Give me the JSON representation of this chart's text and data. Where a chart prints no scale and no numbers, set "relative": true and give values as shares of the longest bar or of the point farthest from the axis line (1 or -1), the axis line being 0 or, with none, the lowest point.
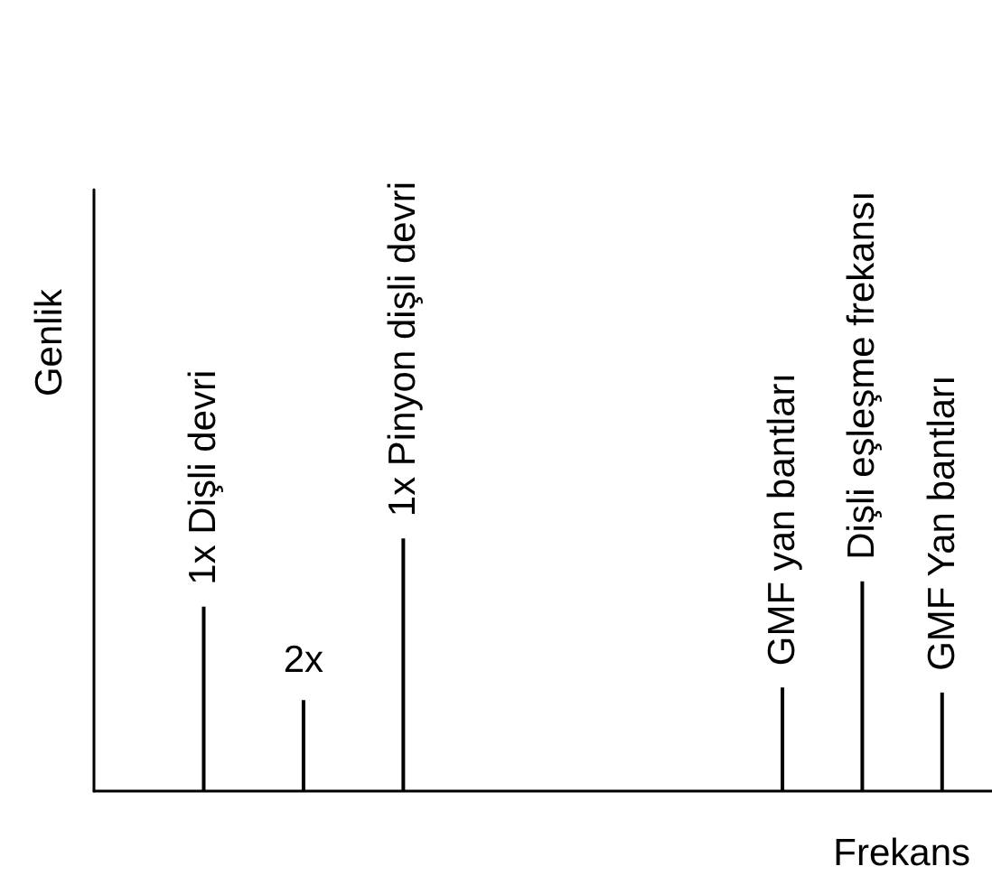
{
  "chart_data": {
    "type": "bar",
    "relative": true,
    "xlabel": "Frekans",
    "ylabel": "Genlik",
    "color": "#000000",
    "categories": [
      null,
      null,
      null,
      null,
      null,
      "1x Dişli devri",
      null,
      null,
      null,
      null,
      "2x",
      null,
      null,
      null,
      null,
      "1x Pinyon dişli devri",
      null,
      null,
      null,
      null,
      null,
      null,
      null,
      null,
      null,
      null,
      null,
      null,
      null,
      null,
      null,
      null,
      null,
      null,
      "GMF yan bantları",
      null,
      null,
      null,
      "Dişli eşleşme frekansı",
      null,
      null,
      null,
      "GMF Yan bantları",
      null,
      null
    ],
    "values": [
      null,
      null,
      null,
      null,
      null,
      0.73,
      null,
      null,
      null,
      null,
      0.36,
      null,
      null,
      null,
      null,
      1,
      null,
      null,
      null,
      null,
      null,
      null,
      null,
      null,
      null,
      null,
      null,
      null,
      null,
      null,
      null,
      null,
      null,
      null,
      0.41,
      null,
      null,
      null,
      0.83,
      null,
      null,
      null,
      0.39,
      null,
      null
    ],
    "grid": false,
    "tick_labels": false
  }
}
